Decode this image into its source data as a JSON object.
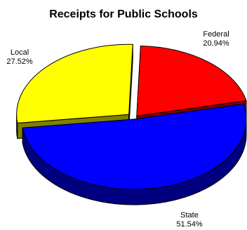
{
  "chart_data": {
    "type": "pie",
    "title": "Receipts for Public Schools",
    "slices": [
      {
        "label": "Federal",
        "value": 20.94,
        "value_text": "20.94%",
        "color": "#ff0000",
        "side_color": "#800000"
      },
      {
        "label": "State",
        "value": 51.54,
        "value_text": "51.54%",
        "color": "#0000ff",
        "side_color": "#000080"
      },
      {
        "label": "Local",
        "value": 27.52,
        "value_text": "27.52%",
        "color": "#ffff00",
        "side_color": "#808000"
      }
    ],
    "exploded": true,
    "three_d": true
  }
}
